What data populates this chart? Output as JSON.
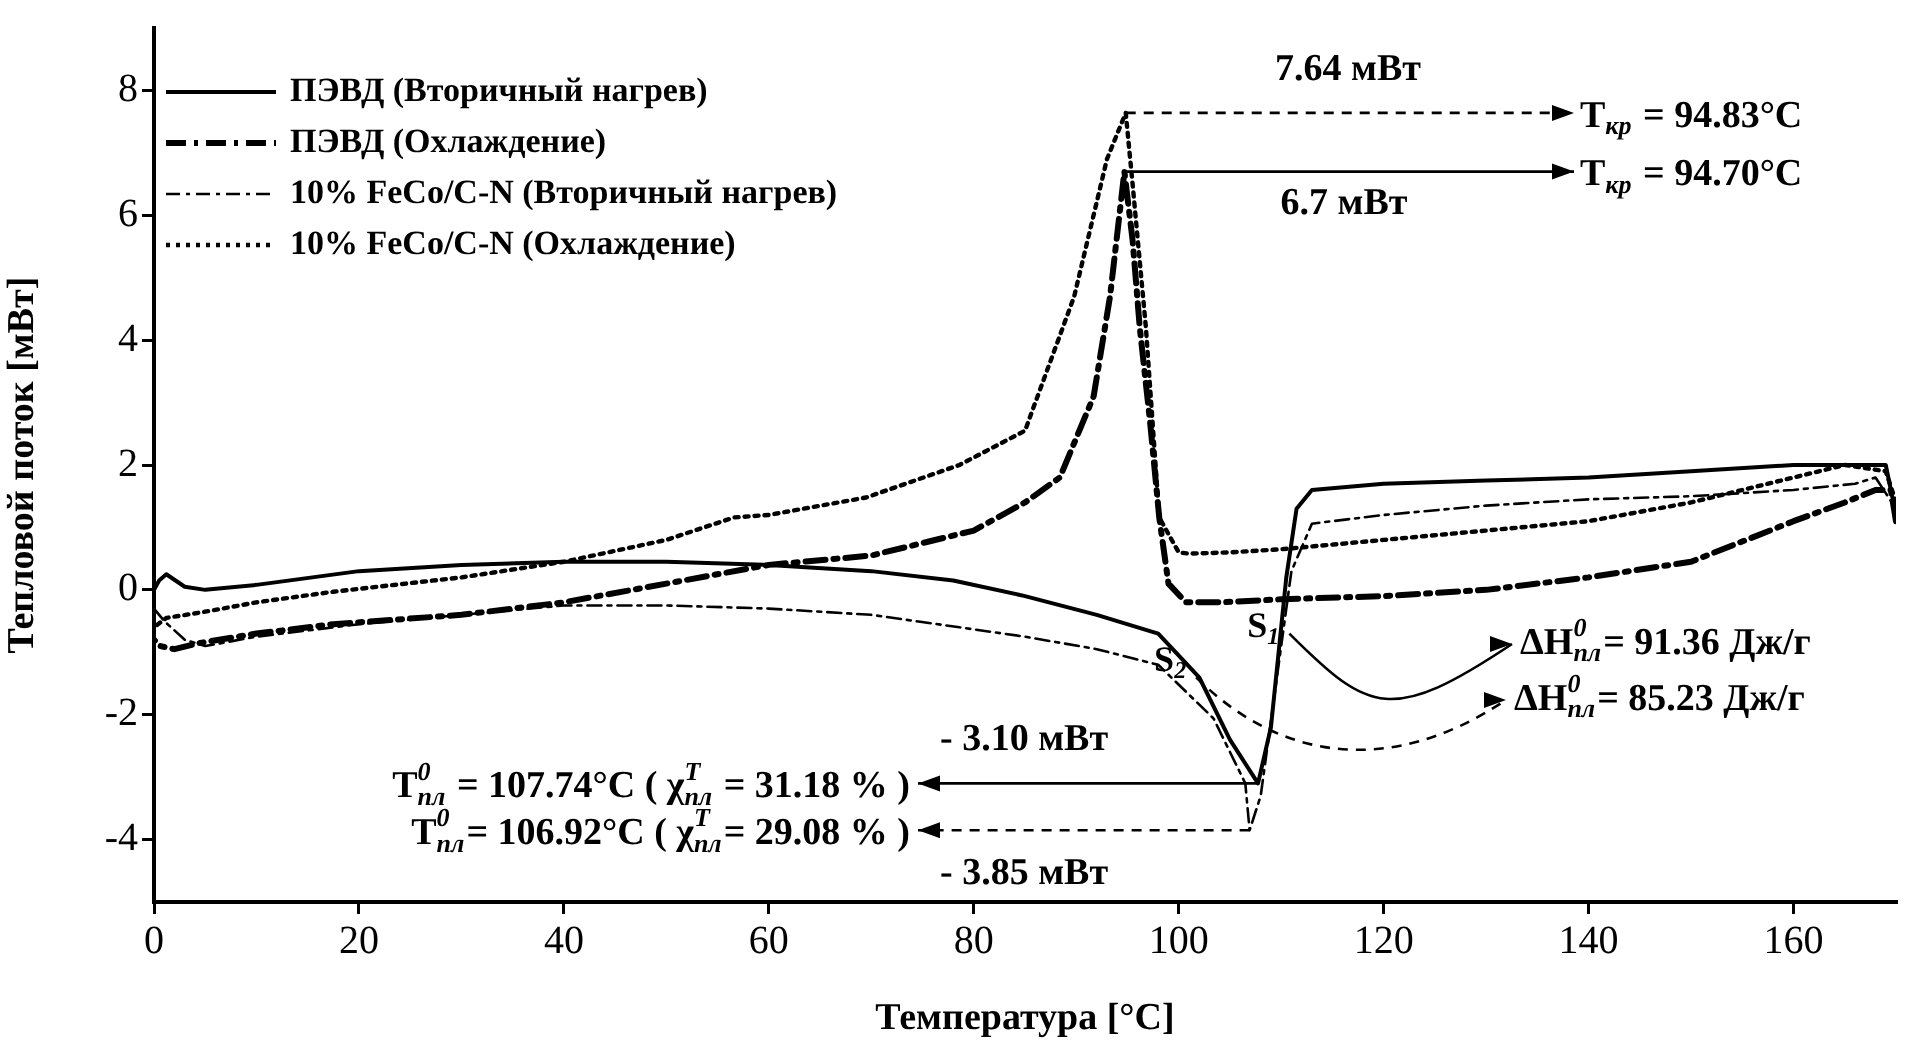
{
  "chart_data": {
    "type": "line",
    "xlabel": "Температура [°C]",
    "ylabel": "Тепловой поток [мВт]",
    "xlim": [
      0,
      170
    ],
    "xticks": [
      0,
      20,
      40,
      60,
      80,
      100,
      120,
      140,
      160
    ],
    "ylim": [
      -5,
      9
    ],
    "yticks": [
      -4,
      -2,
      0,
      2,
      4,
      6,
      8
    ],
    "legend": "top left",
    "marker": "none",
    "series": [
      {
        "name": "ПЭВД (Вторичный нагрев)",
        "color": "#000000",
        "line_style": "solid",
        "x": [
          0,
          0.5,
          1.2,
          3,
          5,
          10,
          20,
          30,
          40,
          50,
          60,
          70,
          78,
          85,
          92,
          98,
          102,
          105,
          107.74,
          109,
          110.5,
          111.5,
          113,
          120,
          130,
          140,
          150,
          160,
          165,
          169,
          170
        ],
        "values": [
          0,
          0.15,
          0.25,
          0.05,
          0,
          0.08,
          0.3,
          0.4,
          0.45,
          0.45,
          0.4,
          0.3,
          0.15,
          -0.1,
          -0.4,
          -0.7,
          -1.4,
          -2.4,
          -3.1,
          -2.2,
          0.2,
          1.3,
          1.6,
          1.7,
          1.75,
          1.8,
          1.9,
          2.0,
          2.0,
          2.0,
          1.2
        ]
      },
      {
        "name": "ПЭВД (Охлаждение)",
        "color": "#000000",
        "line_style": "dashdot",
        "x": [
          170,
          169.5,
          168,
          165,
          160,
          150,
          140,
          130,
          120,
          110,
          104,
          100.7,
          99,
          98.1,
          97.2,
          96.2,
          95.5,
          94.7,
          93.3,
          91.7,
          88.4,
          85,
          80,
          75,
          70,
          60,
          50,
          40,
          30,
          17.5,
          10,
          4.5,
          2,
          0.6,
          0
        ],
        "values": [
          1.1,
          1.6,
          1.6,
          1.4,
          1.1,
          0.45,
          0.2,
          0,
          -0.1,
          -0.15,
          -0.2,
          -0.2,
          0.1,
          1.16,
          2.7,
          4.2,
          5.6,
          6.7,
          4.7,
          3.1,
          1.8,
          1.4,
          0.95,
          0.75,
          0.55,
          0.4,
          0.1,
          -0.2,
          -0.4,
          -0.55,
          -0.7,
          -0.85,
          -0.95,
          -0.9,
          -0.8
        ]
      },
      {
        "name": "10% FeCo/C-N (Вторичный нагрев)",
        "color": "#000000",
        "line_style": "dashdot",
        "x": [
          0,
          1,
          3,
          5,
          10,
          20,
          30,
          40,
          50,
          60,
          70,
          78.6,
          85,
          92,
          98,
          103.4,
          106.5,
          106.92,
          108,
          109.5,
          111,
          113,
          120,
          130,
          140,
          150,
          160,
          166,
          168,
          170
        ],
        "values": [
          -0.3,
          -0.5,
          -0.8,
          -0.9,
          -0.75,
          -0.55,
          -0.4,
          -0.25,
          -0.25,
          -0.3,
          -0.4,
          -0.6,
          -0.75,
          -0.95,
          -1.2,
          -2.06,
          -3.1,
          -3.85,
          -3.3,
          -1.5,
          0.3,
          1.06,
          1.2,
          1.35,
          1.45,
          1.5,
          1.6,
          1.7,
          1.8,
          1.3
        ]
      },
      {
        "name": "10% FeCo/C-N (Охлаждение)",
        "color": "#000000",
        "line_style": "dotted",
        "x": [
          170,
          169,
          165,
          160,
          150,
          140,
          130,
          120,
          110,
          105,
          101,
          100,
          98.1,
          96.8,
          95.5,
          94.83,
          93,
          89.8,
          85,
          78.6,
          69.5,
          60,
          56.6,
          50,
          40,
          30,
          17.5,
          10,
          5,
          1.2,
          0
        ],
        "values": [
          1.4,
          1.9,
          2.0,
          1.8,
          1.4,
          1.1,
          0.95,
          0.8,
          0.65,
          0.6,
          0.58,
          0.6,
          1.16,
          4.2,
          6.5,
          7.64,
          6.9,
          4.7,
          2.55,
          2.0,
          1.48,
          1.2,
          1.16,
          0.8,
          0.45,
          0.2,
          -0.03,
          -0.2,
          -0.35,
          -0.45,
          -0.6
        ]
      }
    ],
    "annotations": [
      "7.64 мВт",
      {
        "text": "T$_{кр}$ = 94.83°C",
        "x": 94.83,
        "y": 7.64
      },
      "6.7 мВт",
      {
        "text": "T$_{кр}$ = 94.70°C",
        "x": 94.7,
        "y": 6.7
      },
      {
        "text": "S$_{1}$",
        "x": 110.8,
        "y": -0.7
      },
      {
        "text": "S$_{2}$",
        "x": 101.7,
        "y": -1.4
      },
      "ΔH$^{0}$$_{пл}$= 91.36 Дж/г",
      "ΔH$^{0}$$_{пл}$= 85.23 Дж/г",
      "- 3.10 мВт",
      {
        "text": "T$^{0}$$_{пл}$ = 107.74°C ( χ$^{T}$$_{пл}$ = 31.18 % )",
        "x": 107.74,
        "y": -3.1
      },
      "- 3.85 мВт",
      {
        "text": "T$^{0}$$_{пл}$= 106.92°C ( χ$^{T}$$_{пл}$= 29.08 % )",
        "x": 106.92,
        "y": -3.85
      }
    ]
  }
}
